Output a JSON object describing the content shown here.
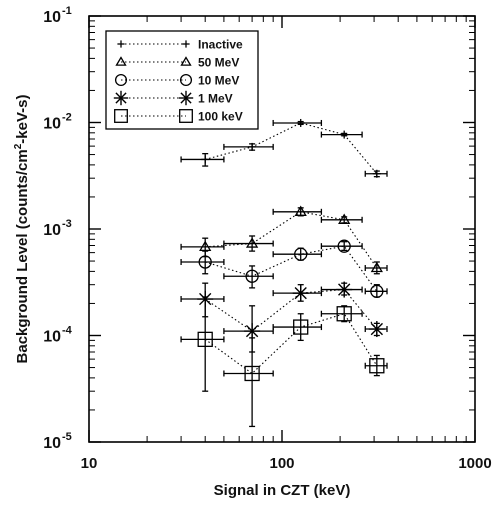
{
  "chart_data": {
    "type": "scatter",
    "xlabel": "Signal in CZT (keV)",
    "ylabel": "Background Level (counts/cm²-keV-s)",
    "xscale": "log",
    "yscale": "log",
    "xlim": [
      10,
      1000
    ],
    "ylim": [
      1e-05,
      0.1
    ],
    "x_ticks": [
      {
        "value": 10,
        "label": "10"
      },
      {
        "value": 100,
        "label": "100"
      },
      {
        "value": 1000,
        "label": "1000"
      }
    ],
    "y_ticks": [
      {
        "value": 1e-05,
        "base": "10",
        "exp": "-5"
      },
      {
        "value": 0.0001,
        "base": "10",
        "exp": "-4"
      },
      {
        "value": 0.001,
        "base": "10",
        "exp": "-3"
      },
      {
        "value": 0.01,
        "base": "10",
        "exp": "-2"
      },
      {
        "value": 0.1,
        "base": "10",
        "exp": "-1"
      }
    ],
    "legend_position": "top-left",
    "grid": false,
    "series": [
      {
        "name": "Inactive",
        "marker": "plus",
        "points": [
          {
            "x": 40,
            "xlo": 30,
            "xhi": 50,
            "y": 0.0045,
            "ylo": 0.0039,
            "yhi": 0.0051
          },
          {
            "x": 70,
            "xlo": 50,
            "xhi": 90,
            "y": 0.0059,
            "ylo": 0.0055,
            "yhi": 0.0063
          },
          {
            "x": 125,
            "xlo": 90,
            "xhi": 160,
            "y": 0.0099,
            "ylo": 0.0096,
            "yhi": 0.0102
          },
          {
            "x": 210,
            "xlo": 160,
            "xhi": 260,
            "y": 0.0077,
            "ylo": 0.0075,
            "yhi": 0.0079
          },
          {
            "x": 310,
            "xlo": 270,
            "xhi": 350,
            "y": 0.0033,
            "ylo": 0.0031,
            "yhi": 0.0035
          }
        ]
      },
      {
        "name": "50 MeV",
        "marker": "triangle",
        "points": [
          {
            "x": 40,
            "xlo": 30,
            "xhi": 50,
            "y": 0.00068,
            "ylo": 0.00055,
            "yhi": 0.00082
          },
          {
            "x": 70,
            "xlo": 50,
            "xhi": 90,
            "y": 0.00073,
            "ylo": 0.00062,
            "yhi": 0.00086
          },
          {
            "x": 125,
            "xlo": 90,
            "xhi": 160,
            "y": 0.00145,
            "ylo": 0.00133,
            "yhi": 0.00158
          },
          {
            "x": 210,
            "xlo": 160,
            "xhi": 260,
            "y": 0.00122,
            "ylo": 0.00114,
            "yhi": 0.0013
          },
          {
            "x": 310,
            "xlo": 270,
            "xhi": 350,
            "y": 0.00043,
            "ylo": 0.00038,
            "yhi": 0.00049
          }
        ]
      },
      {
        "name": "10 MeV",
        "marker": "circle",
        "points": [
          {
            "x": 40,
            "xlo": 30,
            "xhi": 50,
            "y": 0.00049,
            "ylo": 0.00038,
            "yhi": 0.00062
          },
          {
            "x": 70,
            "xlo": 50,
            "xhi": 90,
            "y": 0.00036,
            "ylo": 0.00028,
            "yhi": 0.00045
          },
          {
            "x": 125,
            "xlo": 90,
            "xhi": 160,
            "y": 0.00058,
            "ylo": 0.00051,
            "yhi": 0.00066
          },
          {
            "x": 210,
            "xlo": 160,
            "xhi": 260,
            "y": 0.00069,
            "ylo": 0.00063,
            "yhi": 0.00076
          },
          {
            "x": 310,
            "xlo": 270,
            "xhi": 350,
            "y": 0.00026,
            "ylo": 0.00023,
            "yhi": 0.0003
          }
        ]
      },
      {
        "name": "1 MeV",
        "marker": "star",
        "points": [
          {
            "x": 40,
            "xlo": 30,
            "xhi": 50,
            "y": 0.00022,
            "ylo": 0.00015,
            "yhi": 0.00031
          },
          {
            "x": 70,
            "xlo": 50,
            "xhi": 90,
            "y": 0.00011,
            "ylo": 7e-05,
            "yhi": 0.00019
          },
          {
            "x": 125,
            "xlo": 90,
            "xhi": 160,
            "y": 0.00025,
            "ylo": 0.00021,
            "yhi": 0.0003
          },
          {
            "x": 210,
            "xlo": 160,
            "xhi": 260,
            "y": 0.00027,
            "ylo": 0.00024,
            "yhi": 0.00031
          },
          {
            "x": 310,
            "xlo": 270,
            "xhi": 350,
            "y": 0.000115,
            "ylo": 0.0001,
            "yhi": 0.00013
          }
        ]
      },
      {
        "name": "100 keV",
        "marker": "square",
        "points": [
          {
            "x": 40,
            "xlo": 30,
            "xhi": 50,
            "y": 9.2e-05,
            "ylo": 3e-05,
            "yhi": 0.00023
          },
          {
            "x": 70,
            "xlo": 50,
            "xhi": 90,
            "y": 4.4e-05,
            "ylo": 1.4e-05,
            "yhi": 9.5e-05
          },
          {
            "x": 125,
            "xlo": 90,
            "xhi": 160,
            "y": 0.00012,
            "ylo": 9e-05,
            "yhi": 0.00016
          },
          {
            "x": 210,
            "xlo": 160,
            "xhi": 260,
            "y": 0.00016,
            "ylo": 0.000135,
            "yhi": 0.00019
          },
          {
            "x": 310,
            "xlo": 270,
            "xhi": 350,
            "y": 5.2e-05,
            "ylo": 4.2e-05,
            "yhi": 6.5e-05
          }
        ]
      }
    ]
  }
}
